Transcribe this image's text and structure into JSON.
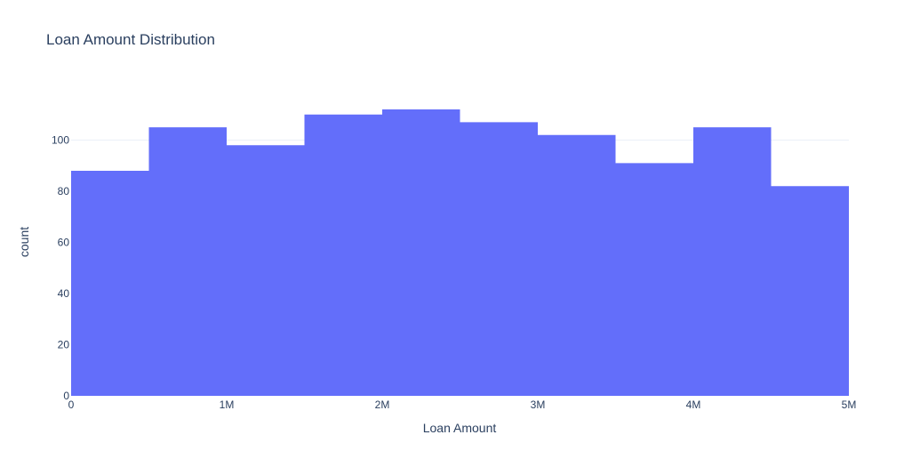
{
  "chart_data": {
    "type": "bar",
    "title": "Loan Amount Distribution",
    "xlabel": "Loan Amount",
    "ylabel": "count",
    "bins": [
      {
        "start": 0,
        "end": 500000,
        "count": 88
      },
      {
        "start": 500000,
        "end": 1000000,
        "count": 105
      },
      {
        "start": 1000000,
        "end": 1500000,
        "count": 98
      },
      {
        "start": 1500000,
        "end": 2000000,
        "count": 110
      },
      {
        "start": 2000000,
        "end": 2500000,
        "count": 112
      },
      {
        "start": 2500000,
        "end": 3000000,
        "count": 107
      },
      {
        "start": 3000000,
        "end": 3500000,
        "count": 102
      },
      {
        "start": 3500000,
        "end": 4000000,
        "count": 91
      },
      {
        "start": 4000000,
        "end": 4500000,
        "count": 105
      },
      {
        "start": 4500000,
        "end": 5000000,
        "count": 82
      }
    ],
    "xlim": [
      0,
      5000000
    ],
    "ylim": [
      0,
      120
    ],
    "x_ticks": [
      {
        "value": 0,
        "label": "0"
      },
      {
        "value": 1000000,
        "label": "1M"
      },
      {
        "value": 2000000,
        "label": "2M"
      },
      {
        "value": 3000000,
        "label": "3M"
      },
      {
        "value": 4000000,
        "label": "4M"
      },
      {
        "value": 5000000,
        "label": "5M"
      }
    ],
    "y_ticks": [
      {
        "value": 0,
        "label": "0"
      },
      {
        "value": 20,
        "label": "20"
      },
      {
        "value": 40,
        "label": "40"
      },
      {
        "value": 60,
        "label": "60"
      },
      {
        "value": 80,
        "label": "80"
      },
      {
        "value": 100,
        "label": "100"
      }
    ],
    "grid": true,
    "bar_color": "#636efa",
    "text_color": "#2a3f5f",
    "grid_color": "#ebf0f8"
  }
}
